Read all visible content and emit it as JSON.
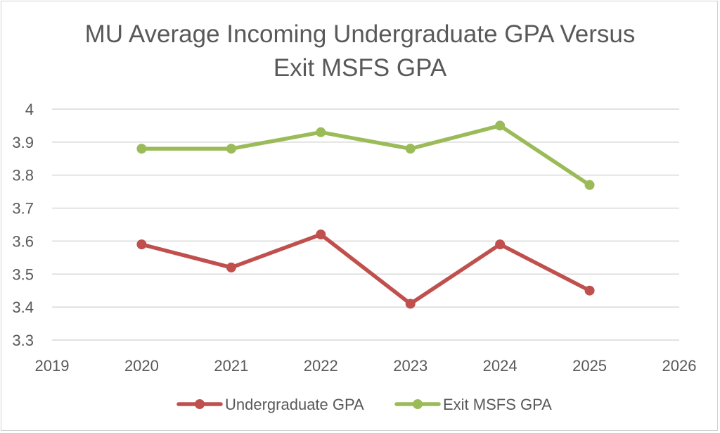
{
  "chart_data": {
    "type": "line",
    "title_lines": [
      "MU Average Incoming Undergraduate GPA Versus",
      "Exit MSFS GPA"
    ],
    "xlabel": "",
    "ylabel": "",
    "xlim": [
      2019,
      2026
    ],
    "ylim": [
      3.3,
      4
    ],
    "x_ticks": [
      "2019",
      "2020",
      "2021",
      "2022",
      "2023",
      "2024",
      "2025",
      "2026"
    ],
    "y_ticks": [
      "3.3",
      "3.4",
      "3.5",
      "3.6",
      "3.7",
      "3.8",
      "3.9",
      "4"
    ],
    "grid": "horizontal",
    "legend_position": "bottom",
    "x": [
      2020,
      2021,
      2022,
      2023,
      2024,
      2025
    ],
    "series": [
      {
        "name": "Undergraduate GPA",
        "color": "#c0504d",
        "values": [
          3.59,
          3.52,
          3.62,
          3.41,
          3.59,
          3.45
        ]
      },
      {
        "name": "Exit MSFS GPA",
        "color": "#9bbb59",
        "values": [
          3.88,
          3.88,
          3.93,
          3.88,
          3.95,
          3.77
        ]
      }
    ]
  }
}
